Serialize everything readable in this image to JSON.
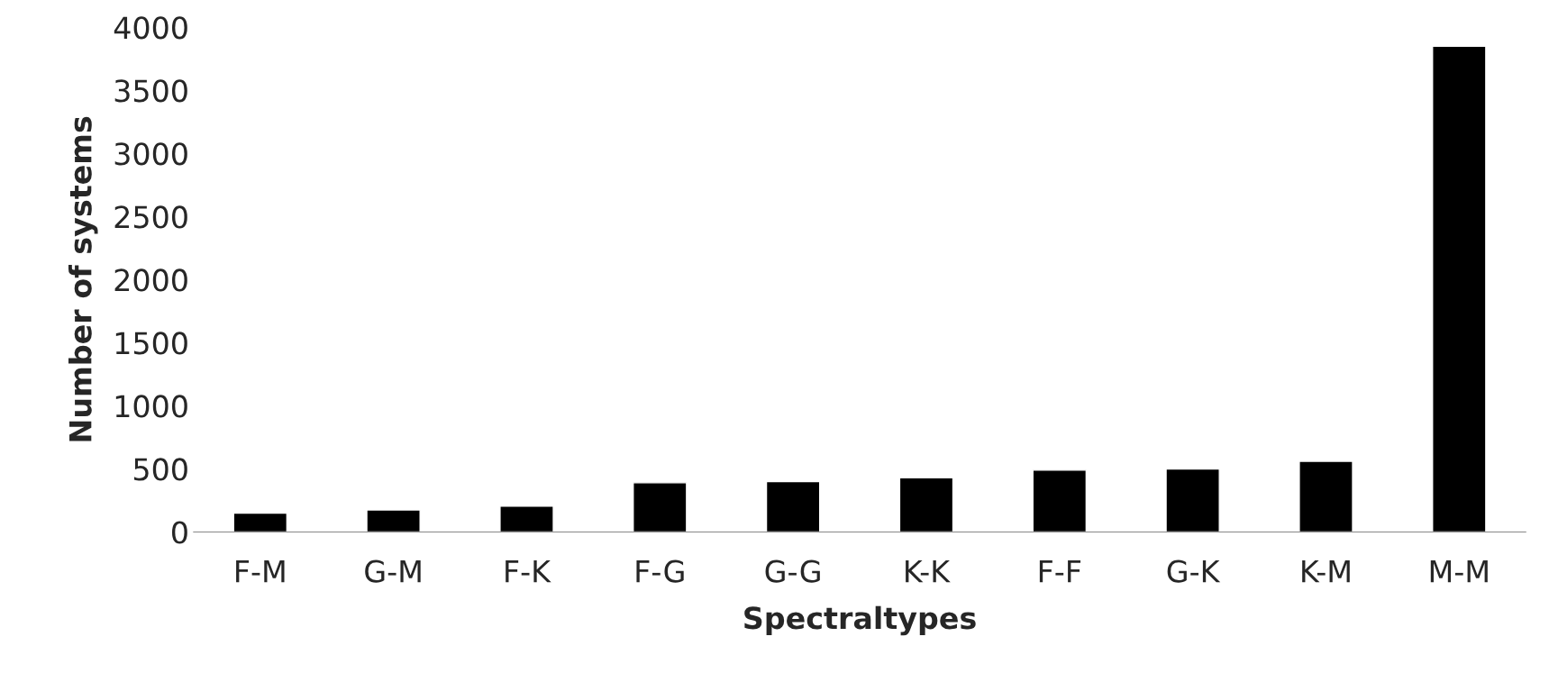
{
  "chart_data": {
    "type": "bar",
    "xlabel": "Spectraltypes",
    "ylabel": "Number of systems",
    "categories": [
      "F-M",
      "G-M",
      "F-K",
      "F-G",
      "G-G",
      "K-K",
      "F-F",
      "G-K",
      "K-M",
      "M-M"
    ],
    "values": [
      150,
      175,
      205,
      390,
      400,
      430,
      490,
      500,
      560,
      3850
    ],
    "color": "#000000",
    "ylim": [
      0,
      4000
    ],
    "yticks": [
      0,
      500,
      1000,
      1500,
      2000,
      2500,
      3000,
      3500,
      4000
    ],
    "grid": false
  }
}
